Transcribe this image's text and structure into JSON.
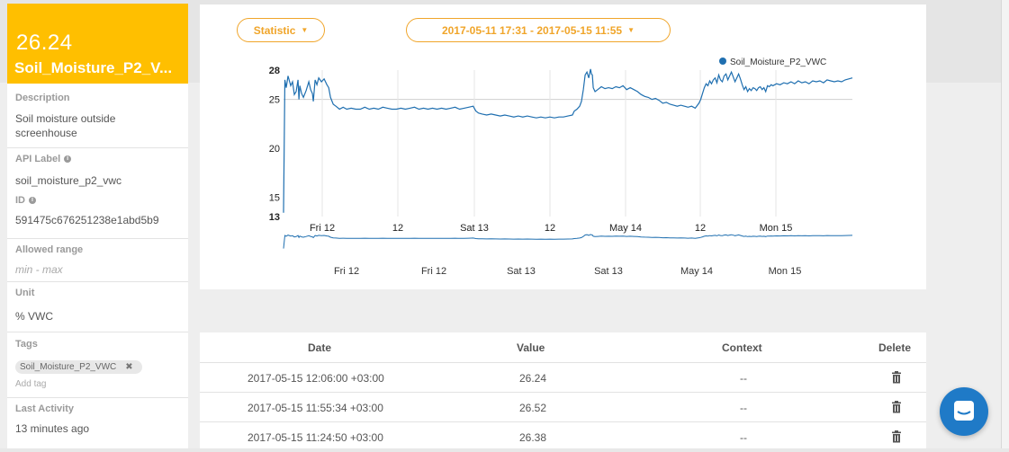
{
  "sidebar": {
    "value": "26.24",
    "variable_name": "Soil_Moisture_P2_V...",
    "description": {
      "title": "Description",
      "text": "Soil moisture outside screenhouse"
    },
    "api_label": {
      "title": "API Label",
      "value": "soil_moisture_p2_vwc"
    },
    "id": {
      "title": "ID",
      "value": "591475c676251238e1abd5b9"
    },
    "allowed_range": {
      "title": "Allowed range",
      "value": "min - max"
    },
    "unit": {
      "title": "Unit",
      "value": "% VWC"
    },
    "tags": {
      "title": "Tags",
      "items": [
        "Soil_Moisture_P2_VWC"
      ],
      "add_label": "Add tag"
    },
    "last_activity": {
      "title": "Last Activity",
      "value": "13 minutes ago"
    }
  },
  "chart_controls": {
    "statistic_label": "Statistic",
    "date_range_label": "2017-05-11 17:31 - 2017-05-15 11:55"
  },
  "chart_data": {
    "type": "line",
    "series": [
      {
        "name": "Soil_Moisture_P2_VWC",
        "color": "#1f6fb0"
      }
    ],
    "y_ticks": [
      "28",
      "25",
      "20",
      "15",
      "13"
    ],
    "ylim": [
      13,
      28
    ],
    "x_ticks": [
      "Fri 12",
      "12",
      "Sat 13",
      "12",
      "May 14",
      "12",
      "Mon 15"
    ],
    "navigator_ticks": [
      "Fri 12",
      "Fri 12",
      "Sat 13",
      "Sat 13",
      "May 14",
      "Mon 15"
    ],
    "points": [
      [
        0,
        13.4
      ],
      [
        1.5,
        27
      ],
      [
        3,
        26.2
      ],
      [
        5,
        27.4
      ],
      [
        8,
        26.4
      ],
      [
        10,
        26.8
      ],
      [
        12,
        25.5
      ],
      [
        14,
        25.8
      ],
      [
        16,
        27
      ],
      [
        17,
        25
      ],
      [
        18,
        26.4
      ],
      [
        20,
        25.6
      ],
      [
        22,
        25.2
      ],
      [
        25,
        25.9
      ],
      [
        28,
        26.8
      ],
      [
        30,
        26
      ],
      [
        32,
        25.6
      ],
      [
        33,
        24.8
      ],
      [
        35,
        27
      ],
      [
        37,
        26.5
      ],
      [
        39,
        27.2
      ],
      [
        42,
        26.8
      ],
      [
        45,
        27.1
      ],
      [
        48,
        26.5
      ],
      [
        50,
        26.2
      ],
      [
        52,
        25.2
      ],
      [
        55,
        24.5
      ],
      [
        58,
        24.3
      ],
      [
        62,
        24
      ],
      [
        66,
        24.2
      ],
      [
        70,
        24
      ],
      [
        75,
        24.1
      ],
      [
        80,
        24
      ],
      [
        85,
        24
      ],
      [
        90,
        24.2
      ],
      [
        95,
        24
      ],
      [
        100,
        24.1
      ],
      [
        105,
        24
      ],
      [
        110,
        24.2
      ],
      [
        115,
        24.1
      ],
      [
        120,
        24
      ],
      [
        125,
        24
      ],
      [
        130,
        24.1
      ],
      [
        135,
        24
      ],
      [
        140,
        24.1
      ],
      [
        145,
        24.2
      ],
      [
        150,
        24
      ],
      [
        155,
        24.1
      ],
      [
        160,
        24
      ],
      [
        165,
        24.1
      ],
      [
        170,
        24
      ],
      [
        175,
        24.1
      ],
      [
        180,
        24
      ],
      [
        185,
        24.1
      ],
      [
        190,
        24.2
      ],
      [
        195,
        24
      ],
      [
        200,
        24.1
      ],
      [
        205,
        24.2
      ],
      [
        210,
        24.3
      ],
      [
        213,
        23.8
      ],
      [
        216,
        23.6
      ],
      [
        220,
        23.5
      ],
      [
        225,
        23.4
      ],
      [
        230,
        23.5
      ],
      [
        235,
        23.4
      ],
      [
        240,
        23.3
      ],
      [
        245,
        23.4
      ],
      [
        250,
        23.3
      ],
      [
        255,
        23.2
      ],
      [
        260,
        23.3
      ],
      [
        265,
        23.2
      ],
      [
        270,
        23.3
      ],
      [
        275,
        23.2
      ],
      [
        280,
        23.1
      ],
      [
        285,
        23.2
      ],
      [
        290,
        23.1
      ],
      [
        295,
        23.2
      ],
      [
        300,
        23.1
      ],
      [
        305,
        23.2
      ],
      [
        310,
        23.2
      ],
      [
        315,
        23.3
      ],
      [
        320,
        23.4
      ],
      [
        322,
        23.8
      ],
      [
        325,
        24
      ],
      [
        328,
        24.3
      ],
      [
        330,
        24.8
      ],
      [
        332,
        26
      ],
      [
        334,
        27.5
      ],
      [
        336,
        27.8
      ],
      [
        338,
        27.2
      ],
      [
        340,
        28.1
      ],
      [
        341,
        27.6
      ],
      [
        342,
        27.5
      ],
      [
        343,
        26.2
      ],
      [
        345,
        25.8
      ],
      [
        348,
        26
      ],
      [
        352,
        26.3
      ],
      [
        356,
        26.1
      ],
      [
        360,
        26.2
      ],
      [
        364,
        26.1
      ],
      [
        368,
        26.3
      ],
      [
        372,
        26.2
      ],
      [
        376,
        26.4
      ],
      [
        380,
        26
      ],
      [
        384,
        26.2
      ],
      [
        388,
        26
      ],
      [
        392,
        25.8
      ],
      [
        396,
        25.5
      ],
      [
        400,
        25.3
      ],
      [
        404,
        25.2
      ],
      [
        408,
        25
      ],
      [
        412,
        25.1
      ],
      [
        416,
        24.9
      ],
      [
        420,
        24.6
      ],
      [
        424,
        24.7
      ],
      [
        428,
        24.5
      ],
      [
        432,
        24.4
      ],
      [
        436,
        24.3
      ],
      [
        440,
        24.4
      ],
      [
        444,
        24.3
      ],
      [
        448,
        24.2
      ],
      [
        452,
        24.3
      ],
      [
        456,
        24.1
      ],
      [
        460,
        24.6
      ],
      [
        462,
        25
      ],
      [
        464,
        25.6
      ],
      [
        466,
        26.2
      ],
      [
        468,
        26.6
      ],
      [
        470,
        26.4
      ],
      [
        472,
        26.9
      ],
      [
        474,
        26.6
      ],
      [
        476,
        27
      ],
      [
        478,
        27.2
      ],
      [
        480,
        26.7
      ],
      [
        482,
        27.5
      ],
      [
        484,
        27
      ],
      [
        486,
        26.8
      ],
      [
        488,
        27.4
      ],
      [
        490,
        27.6
      ],
      [
        492,
        27
      ],
      [
        494,
        27.4
      ],
      [
        496,
        27.8
      ],
      [
        498,
        27.3
      ],
      [
        500,
        26.8
      ],
      [
        502,
        27.2
      ],
      [
        504,
        27.6
      ],
      [
        506,
        27.1
      ],
      [
        508,
        26.5
      ],
      [
        510,
        26
      ],
      [
        512,
        26.3
      ],
      [
        514,
        25.8
      ],
      [
        516,
        26.1
      ],
      [
        518,
        25.9
      ],
      [
        520,
        26.2
      ],
      [
        522,
        26.1
      ],
      [
        524,
        25.9
      ],
      [
        526,
        26.2
      ],
      [
        528,
        26.3
      ],
      [
        530,
        26
      ],
      [
        532,
        26.2
      ],
      [
        534,
        25.8
      ],
      [
        536,
        26.4
      ],
      [
        538,
        26.3
      ],
      [
        540,
        26.5
      ],
      [
        542,
        26.4
      ],
      [
        546,
        26.6
      ],
      [
        550,
        26.5
      ],
      [
        554,
        26.7
      ],
      [
        558,
        26.6
      ],
      [
        562,
        26.8
      ],
      [
        566,
        26.6
      ],
      [
        570,
        26.9
      ],
      [
        574,
        26.7
      ],
      [
        578,
        26.8
      ],
      [
        582,
        26.6
      ],
      [
        586,
        26.9
      ],
      [
        590,
        26.8
      ],
      [
        594,
        26.9
      ],
      [
        598,
        26.7
      ],
      [
        602,
        27
      ],
      [
        606,
        26.9
      ],
      [
        610,
        26.8
      ],
      [
        614,
        26.9
      ],
      [
        618,
        26.8
      ],
      [
        622,
        27
      ],
      [
        626,
        27.1
      ],
      [
        630,
        27.2
      ]
    ]
  },
  "table": {
    "headers": {
      "date": "Date",
      "value": "Value",
      "context": "Context",
      "delete": "Delete"
    },
    "rows": [
      {
        "date": "2017-05-15 12:06:00 +03:00",
        "value": "26.24",
        "context": "--"
      },
      {
        "date": "2017-05-15 11:55:34 +03:00",
        "value": "26.52",
        "context": "--"
      },
      {
        "date": "2017-05-15 11:24:50 +03:00",
        "value": "26.38",
        "context": "--"
      }
    ]
  },
  "colors": {
    "accent": "#ffbf00",
    "control_orange": "#f0a52a",
    "series_blue": "#1f6fb0",
    "chat_blue": "#1f7ac7"
  },
  "icons": {
    "info": "info-icon",
    "tag_remove": "close-icon",
    "delete": "trash-icon",
    "chat": "chat-icon"
  }
}
